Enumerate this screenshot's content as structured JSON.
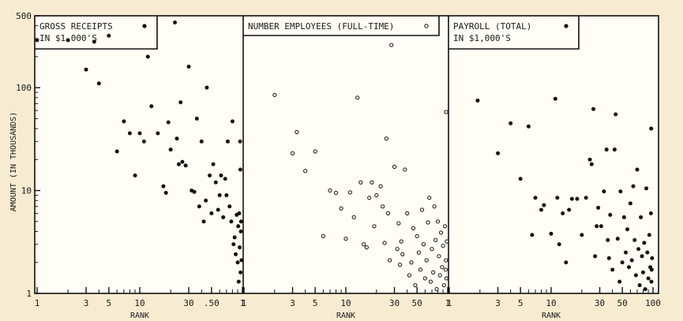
{
  "chart_data": {
    "type": "scatter",
    "ylabel": "AMOUNT (IN THOUSANDS)",
    "yscale": "log",
    "ylim": [
      1,
      500
    ],
    "yticks": [
      "1",
      "10",
      "100",
      "500"
    ],
    "grid": false,
    "panels": [
      {
        "legend": [
          "GROSS RECEIPTS",
          "IN $1,000'S"
        ],
        "marker": "filled",
        "xlabel": "RANK",
        "xscale": "log",
        "xlim": [
          1,
          100
        ],
        "xticks": [
          "1",
          "3",
          "5",
          "10",
          "30",
          ".50",
          "1"
        ],
        "points": [
          [
            1,
            290
          ],
          [
            2,
            290
          ],
          [
            3,
            150
          ],
          [
            3.6,
            280
          ],
          [
            4,
            110
          ],
          [
            5,
            320
          ],
          [
            6,
            24
          ],
          [
            7,
            47
          ],
          [
            8,
            36
          ],
          [
            9,
            14
          ],
          [
            10,
            36
          ],
          [
            11,
            30
          ],
          [
            12,
            200
          ],
          [
            13,
            66
          ],
          [
            15,
            36
          ],
          [
            17,
            11
          ],
          [
            18,
            9.5
          ],
          [
            19,
            46
          ],
          [
            20,
            25
          ],
          [
            22,
            430
          ],
          [
            23,
            32
          ],
          [
            24,
            18
          ],
          [
            25,
            72
          ],
          [
            26,
            19
          ],
          [
            28,
            17.5
          ],
          [
            30,
            160
          ],
          [
            32,
            10
          ],
          [
            34,
            9.7
          ],
          [
            36,
            50
          ],
          [
            38,
            7
          ],
          [
            40,
            30
          ],
          [
            42,
            5
          ],
          [
            44,
            8
          ],
          [
            45,
            100
          ],
          [
            48,
            14
          ],
          [
            50,
            6
          ],
          [
            52,
            18
          ],
          [
            55,
            12
          ],
          [
            58,
            6.5
          ],
          [
            60,
            9
          ],
          [
            62,
            14
          ],
          [
            65,
            5.5
          ],
          [
            68,
            13
          ],
          [
            70,
            9
          ],
          [
            72,
            30
          ],
          [
            75,
            7
          ],
          [
            78,
            5
          ],
          [
            80,
            47
          ],
          [
            82,
            3
          ],
          [
            84,
            3.5
          ],
          [
            86,
            2.4
          ],
          [
            88,
            5.8
          ],
          [
            90,
            2
          ],
          [
            91,
            4.5
          ],
          [
            92,
            1.3
          ],
          [
            93,
            6
          ],
          [
            94,
            2.8
          ],
          [
            95,
            30
          ],
          [
            96,
            1.6
          ],
          [
            97,
            5
          ],
          [
            98,
            2.1
          ],
          [
            99,
            16
          ],
          [
            100,
            4
          ]
        ]
      },
      {
        "legend": [
          "NUMBER EMPLOYEES (FULL-TIME)"
        ],
        "marker": "open",
        "xlabel": "RANK",
        "xscale": "log",
        "xlim": [
          1,
          100
        ],
        "xticks": [
          "1",
          "3",
          "5",
          "10",
          "30",
          "50",
          "1"
        ],
        "points": [
          [
            2,
            85
          ],
          [
            3,
            23
          ],
          [
            3.3,
            37
          ],
          [
            4,
            15.5
          ],
          [
            5,
            24
          ],
          [
            6,
            3.6
          ],
          [
            7,
            10
          ],
          [
            8,
            9.5
          ],
          [
            9,
            6.7
          ],
          [
            10,
            3.4
          ],
          [
            11,
            9.6
          ],
          [
            12,
            5.5
          ],
          [
            13,
            80
          ],
          [
            14,
            12
          ],
          [
            15,
            3
          ],
          [
            16,
            2.8
          ],
          [
            17,
            8.5
          ],
          [
            18,
            12
          ],
          [
            19,
            4.5
          ],
          [
            20,
            9
          ],
          [
            22,
            11
          ],
          [
            23,
            7
          ],
          [
            24,
            3.1
          ],
          [
            25,
            32
          ],
          [
            26,
            6
          ],
          [
            27,
            2.1
          ],
          [
            28,
            260
          ],
          [
            30,
            17
          ],
          [
            32,
            2.7
          ],
          [
            33,
            4.8
          ],
          [
            34,
            1.9
          ],
          [
            35,
            3.2
          ],
          [
            36,
            2.4
          ],
          [
            38,
            16
          ],
          [
            40,
            6
          ],
          [
            42,
            1.5
          ],
          [
            44,
            2
          ],
          [
            46,
            4.3
          ],
          [
            48,
            1.2
          ],
          [
            50,
            3.6
          ],
          [
            52,
            2.5
          ],
          [
            54,
            1.7
          ],
          [
            56,
            6.5
          ],
          [
            58,
            3
          ],
          [
            60,
            1.4
          ],
          [
            62,
            2.1
          ],
          [
            64,
            4.9
          ],
          [
            66,
            8.5
          ],
          [
            68,
            1.3
          ],
          [
            70,
            2.7
          ],
          [
            72,
            1.6
          ],
          [
            74,
            7
          ],
          [
            76,
            3.3
          ],
          [
            78,
            1.1
          ],
          [
            80,
            5
          ],
          [
            82,
            2.3
          ],
          [
            84,
            1.5
          ],
          [
            86,
            3.9
          ],
          [
            88,
            1.8
          ],
          [
            90,
            2.9
          ],
          [
            92,
            1.2
          ],
          [
            94,
            4.5
          ],
          [
            96,
            2.1
          ],
          [
            97,
            1.4
          ],
          [
            98,
            3.2
          ],
          [
            99,
            1.7
          ],
          [
            100,
            58
          ]
        ]
      },
      {
        "legend": [
          "PAYROLL (TOTAL)",
          "IN $1,000'S"
        ],
        "marker": "filled",
        "xlabel": "RANK",
        "xscale": "log",
        "xlim": [
          1,
          100
        ],
        "xticks": [
          "1",
          "3",
          "5",
          "10",
          "30",
          "50",
          "100"
        ],
        "points": [
          [
            1.9,
            75
          ],
          [
            3,
            23
          ],
          [
            4,
            45
          ],
          [
            5,
            13
          ],
          [
            6,
            42
          ],
          [
            6.5,
            3.7
          ],
          [
            7,
            8.5
          ],
          [
            8,
            6.5
          ],
          [
            8.5,
            7.2
          ],
          [
            10,
            3.8
          ],
          [
            11,
            78
          ],
          [
            11.5,
            8.5
          ],
          [
            12,
            3
          ],
          [
            13,
            6
          ],
          [
            14,
            2
          ],
          [
            15,
            6.5
          ],
          [
            16,
            8.3
          ],
          [
            18,
            8.3
          ],
          [
            20,
            3.7
          ],
          [
            22,
            8.5
          ],
          [
            24,
            20
          ],
          [
            25,
            18
          ],
          [
            26,
            62
          ],
          [
            27,
            2.3
          ],
          [
            28,
            4.5
          ],
          [
            29,
            6.8
          ],
          [
            31,
            4.5
          ],
          [
            33,
            9.8
          ],
          [
            35,
            25
          ],
          [
            36,
            3.3
          ],
          [
            37,
            2.2
          ],
          [
            38,
            5.8
          ],
          [
            40,
            1.7
          ],
          [
            42,
            25
          ],
          [
            43,
            55
          ],
          [
            45,
            3.4
          ],
          [
            47,
            1.3
          ],
          [
            48,
            9.8
          ],
          [
            50,
            2
          ],
          [
            52,
            5.5
          ],
          [
            54,
            2.5
          ],
          [
            56,
            4.2
          ],
          [
            58,
            1.8
          ],
          [
            60,
            7.5
          ],
          [
            62,
            2.1
          ],
          [
            64,
            11
          ],
          [
            66,
            3.3
          ],
          [
            68,
            1.5
          ],
          [
            70,
            16
          ],
          [
            72,
            2.7
          ],
          [
            74,
            1.2
          ],
          [
            76,
            5.5
          ],
          [
            78,
            2.3
          ],
          [
            80,
            1.6
          ],
          [
            82,
            3.1
          ],
          [
            84,
            1.1
          ],
          [
            86,
            10.5
          ],
          [
            88,
            2.5
          ],
          [
            90,
            1.4
          ],
          [
            92,
            3.7
          ],
          [
            94,
            1.8
          ],
          [
            96,
            40
          ],
          [
            98,
            2.2
          ],
          [
            99,
            6
          ],
          [
            100,
            1.3
          ],
          [
            97,
            1.7
          ]
        ]
      }
    ]
  }
}
